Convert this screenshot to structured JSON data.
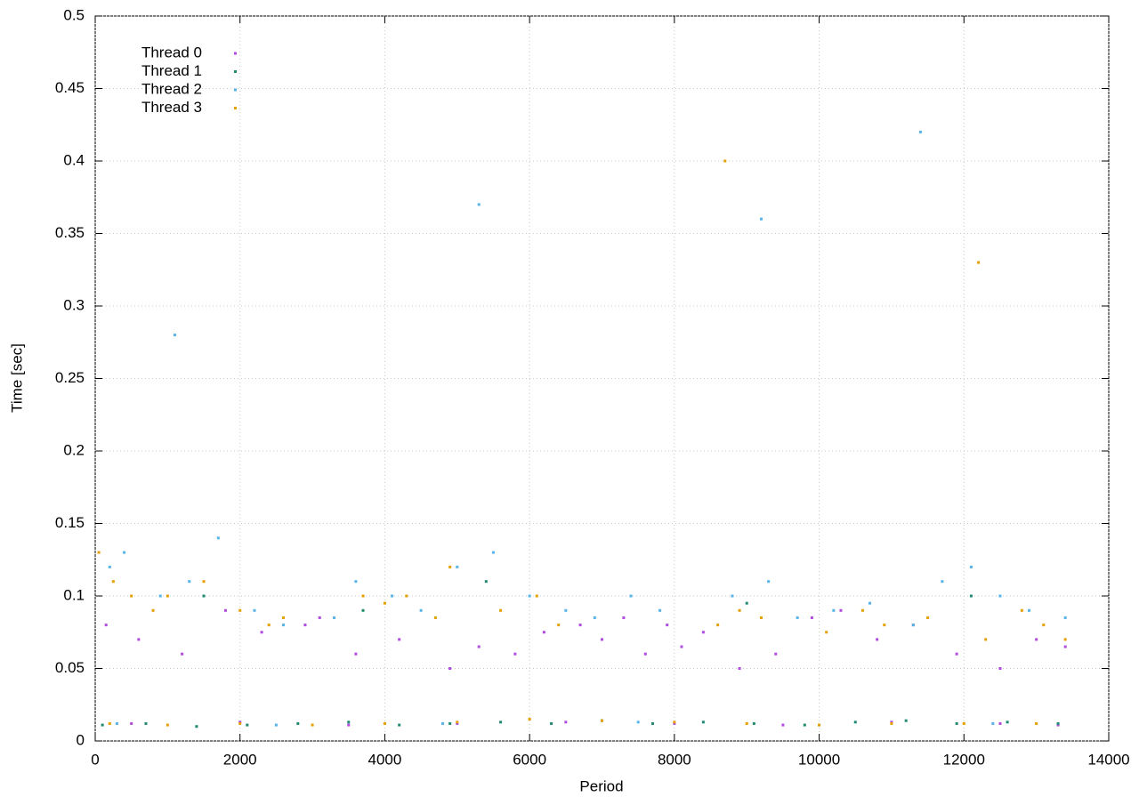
{
  "chart_data": {
    "type": "scatter",
    "x_label": "Period",
    "y_label": "Time [sec]",
    "xlim": [
      0,
      14000
    ],
    "xticks": [
      0,
      2000,
      4000,
      6000,
      8000,
      10000,
      12000,
      14000
    ],
    "ylim": [
      0,
      0.5
    ],
    "yticks": [
      0,
      0.05,
      0.1,
      0.15,
      0.2,
      0.25,
      0.3,
      0.35,
      0.4,
      0.45,
      0.5
    ],
    "grid": true,
    "legend": "upper-left",
    "series": [
      {
        "name": "Thread 0",
        "color": "#b04ae0",
        "x": [
          150,
          600,
          1200,
          1800,
          2300,
          2900,
          3100,
          3600,
          4200,
          4900,
          5300,
          5800,
          6200,
          6700,
          7000,
          7300,
          7600,
          7900,
          8100,
          8400,
          8900,
          9400,
          9900,
          10300,
          10800,
          11300,
          11900,
          12500,
          13000,
          13400,
          500,
          2000,
          3500,
          5000,
          6500,
          8000,
          9500,
          11000,
          12500,
          13300
        ],
        "values": [
          0.08,
          0.07,
          0.06,
          0.09,
          0.075,
          0.08,
          0.085,
          0.06,
          0.07,
          0.05,
          0.065,
          0.06,
          0.075,
          0.08,
          0.07,
          0.085,
          0.06,
          0.08,
          0.065,
          0.075,
          0.05,
          0.06,
          0.085,
          0.09,
          0.07,
          0.08,
          0.06,
          0.05,
          0.07,
          0.065,
          0.012,
          0.013,
          0.011,
          0.012,
          0.013,
          0.012,
          0.011,
          0.013,
          0.012,
          0.011
        ]
      },
      {
        "name": "Thread 1",
        "color": "#1f8a70",
        "x": [
          100,
          700,
          1400,
          2100,
          2800,
          3500,
          4200,
          4900,
          5600,
          6300,
          7000,
          7700,
          8400,
          9100,
          9800,
          10500,
          11200,
          11900,
          12600,
          13300,
          1500,
          3700,
          5400,
          9000,
          12100
        ],
        "values": [
          0.011,
          0.012,
          0.01,
          0.011,
          0.012,
          0.013,
          0.011,
          0.012,
          0.013,
          0.012,
          0.014,
          0.012,
          0.013,
          0.012,
          0.011,
          0.013,
          0.014,
          0.012,
          0.013,
          0.012,
          0.1,
          0.09,
          0.11,
          0.095,
          0.1
        ]
      },
      {
        "name": "Thread 2",
        "color": "#56b4e9",
        "x": [
          200,
          400,
          900,
          1300,
          1700,
          2200,
          2600,
          3300,
          3600,
          4100,
          4500,
          5000,
          5500,
          6000,
          6500,
          6900,
          7400,
          7800,
          8800,
          9300,
          9700,
          10200,
          10700,
          11300,
          11700,
          12100,
          12500,
          12900,
          13400,
          300,
          2500,
          4800,
          7500,
          10000,
          12400,
          1100,
          5300,
          9200,
          11400
        ],
        "values": [
          0.12,
          0.13,
          0.1,
          0.11,
          0.14,
          0.09,
          0.08,
          0.085,
          0.11,
          0.1,
          0.09,
          0.12,
          0.13,
          0.1,
          0.09,
          0.085,
          0.1,
          0.09,
          0.1,
          0.11,
          0.085,
          0.09,
          0.095,
          0.08,
          0.11,
          0.12,
          0.1,
          0.09,
          0.085,
          0.012,
          0.011,
          0.012,
          0.013,
          0.011,
          0.012,
          0.28,
          0.37,
          0.36,
          0.42
        ]
      },
      {
        "name": "Thread 3",
        "color": "#e69f00",
        "x": [
          50,
          250,
          500,
          800,
          1000,
          1500,
          2000,
          2400,
          2600,
          3700,
          4000,
          4300,
          4700,
          4900,
          5600,
          6100,
          6400,
          8600,
          8900,
          9200,
          10100,
          10600,
          10900,
          11500,
          12300,
          12800,
          13100,
          13400,
          200,
          1000,
          2000,
          3000,
          4000,
          5000,
          6000,
          7000,
          8000,
          9000,
          10000,
          11000,
          12000,
          13000,
          8700,
          12200
        ],
        "values": [
          0.13,
          0.11,
          0.1,
          0.09,
          0.1,
          0.11,
          0.09,
          0.08,
          0.085,
          0.1,
          0.095,
          0.1,
          0.085,
          0.12,
          0.09,
          0.1,
          0.08,
          0.08,
          0.09,
          0.085,
          0.075,
          0.09,
          0.08,
          0.085,
          0.07,
          0.09,
          0.08,
          0.07,
          0.012,
          0.011,
          0.012,
          0.011,
          0.012,
          0.013,
          0.015,
          0.014,
          0.013,
          0.012,
          0.011,
          0.012,
          0.012,
          0.012,
          0.4,
          0.33
        ]
      }
    ]
  }
}
